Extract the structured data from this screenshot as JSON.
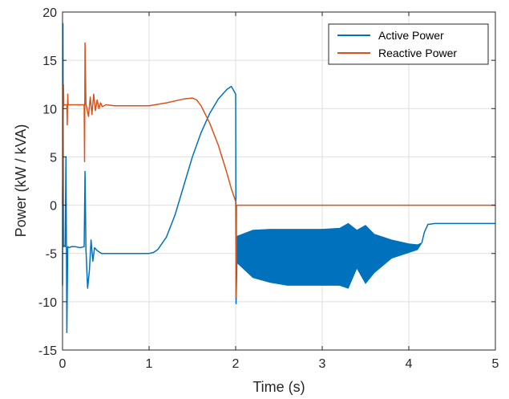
{
  "chart_data": {
    "type": "line",
    "title": "",
    "xlabel": "Time (s)",
    "ylabel": "Power (kW / kVA)",
    "xlim": [
      0,
      5
    ],
    "ylim": [
      -15,
      20
    ],
    "xticks": [
      0,
      1,
      2,
      3,
      4,
      5
    ],
    "yticks": [
      -15,
      -10,
      -5,
      0,
      5,
      10,
      15,
      20
    ],
    "grid": true,
    "legend": "top-right",
    "series": [
      {
        "name": "Active Power",
        "color": "#0072BD",
        "x": [
          0,
          0.005,
          0.01,
          0.02,
          0.03,
          0.04,
          0.05,
          0.06,
          0.08,
          0.1,
          0.15,
          0.2,
          0.25,
          0.26,
          0.27,
          0.29,
          0.31,
          0.33,
          0.35,
          0.37,
          0.4,
          0.45,
          0.5,
          0.6,
          0.7,
          0.8,
          0.9,
          1.0,
          1.05,
          1.1,
          1.2,
          1.3,
          1.4,
          1.5,
          1.6,
          1.7,
          1.8,
          1.9,
          1.95,
          2.0,
          2.005,
          2.02
        ],
        "y": [
          -8.3,
          18.8,
          -4.3,
          -4.2,
          -4.3,
          5.0,
          -13.2,
          -4.3,
          -4.4,
          -4.3,
          -4.3,
          -4.4,
          -4.3,
          3.5,
          -4.5,
          -8.6,
          -6.8,
          -3.6,
          -5.8,
          -4.4,
          -4.7,
          -5.0,
          -5.0,
          -5.0,
          -5.0,
          -5.0,
          -5.0,
          -5.0,
          -4.9,
          -4.6,
          -3.3,
          -1.0,
          2.0,
          5.0,
          7.5,
          9.5,
          11.0,
          12.0,
          12.3,
          11.5,
          -10.2,
          -3.2
        ],
        "band": {
          "x": [
            2.02,
            2.2,
            2.4,
            2.6,
            2.8,
            3.0,
            3.2,
            3.3,
            3.4,
            3.5,
            3.6,
            3.8,
            4.0,
            4.1,
            4.15
          ],
          "upper": [
            -3.2,
            -2.6,
            -2.5,
            -2.5,
            -2.5,
            -2.5,
            -2.4,
            -1.9,
            -2.6,
            -2.1,
            -3.0,
            -3.6,
            -4.0,
            -4.1,
            -3.9
          ],
          "lower": [
            -6.0,
            -7.5,
            -8.0,
            -8.3,
            -8.3,
            -8.3,
            -8.3,
            -8.6,
            -6.5,
            -8.1,
            -7.0,
            -5.5,
            -4.9,
            -4.6,
            -3.9
          ]
        },
        "tail": {
          "x": [
            4.15,
            4.18,
            4.22,
            4.3,
            4.5,
            4.7,
            5.0
          ],
          "y": [
            -3.9,
            -2.8,
            -2.0,
            -1.9,
            -1.9,
            -1.9,
            -1.9
          ]
        }
      },
      {
        "name": "Reactive Power",
        "color": "#D95319",
        "x": [
          0,
          0.01,
          0.015,
          0.02,
          0.03,
          0.05,
          0.055,
          0.06,
          0.065,
          0.1,
          0.15,
          0.2,
          0.25,
          0.255,
          0.26,
          0.27,
          0.3,
          0.32,
          0.34,
          0.36,
          0.38,
          0.4,
          0.42,
          0.44,
          0.46,
          0.5,
          0.6,
          0.8,
          1.0,
          1.2,
          1.4,
          1.5,
          1.55,
          1.6,
          1.7,
          1.8,
          1.9,
          1.95,
          2.0,
          2.005,
          2.01,
          2.5,
          3.0,
          3.5,
          4.0,
          4.5,
          5.0
        ],
        "y": [
          0,
          12.5,
          10.3,
          10.4,
          10.4,
          10.4,
          8.3,
          11.5,
          10.4,
          10.4,
          10.4,
          10.4,
          10.4,
          4.5,
          16.8,
          10.5,
          9.2,
          11.2,
          9.4,
          11.5,
          9.8,
          10.9,
          10.0,
          10.6,
          10.2,
          10.4,
          10.3,
          10.3,
          10.3,
          10.6,
          11.0,
          11.1,
          10.9,
          10.3,
          8.5,
          6.2,
          3.3,
          1.7,
          0.4,
          -9.5,
          0,
          0,
          0,
          0,
          0,
          0,
          0
        ]
      }
    ]
  }
}
